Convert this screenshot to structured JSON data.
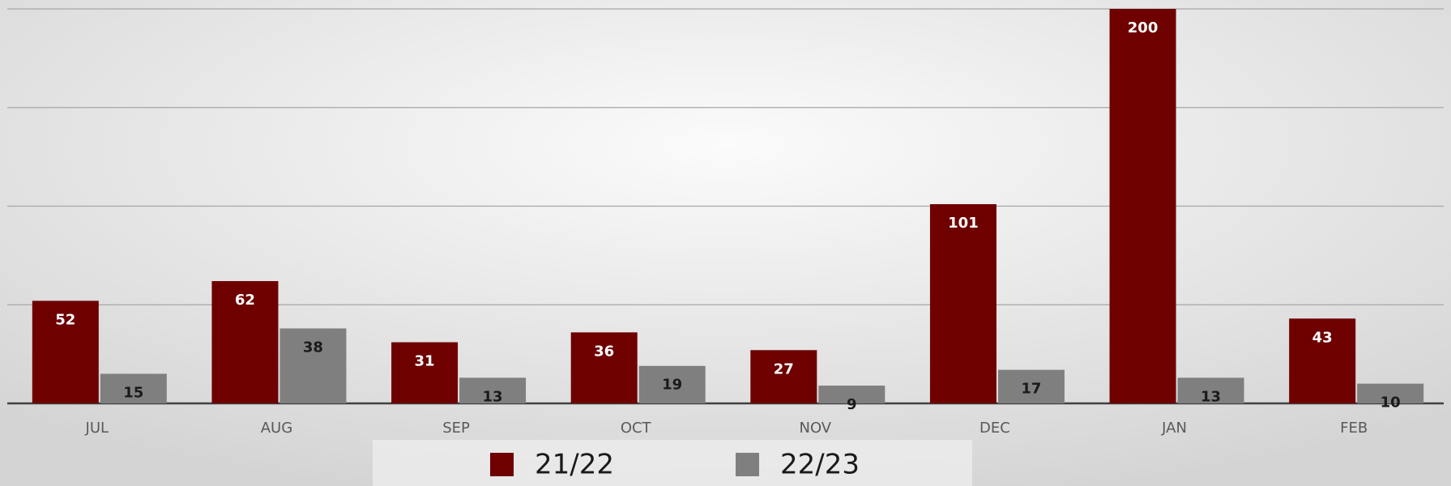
{
  "chart_data": {
    "type": "bar",
    "categories": [
      "JUL",
      "AUG",
      "SEP",
      "OCT",
      "NOV",
      "DEC",
      "JAN",
      "FEB"
    ],
    "series": [
      {
        "name": "21/22",
        "color": "#6e0000",
        "values": [
          52,
          62,
          31,
          36,
          27,
          101,
          200,
          43
        ]
      },
      {
        "name": "22/23",
        "color": "#7f7f7f",
        "values": [
          15,
          38,
          13,
          19,
          9,
          17,
          13,
          10
        ]
      }
    ],
    "ylim": [
      0,
      200
    ],
    "yticks": [
      0,
      50,
      100,
      150,
      200
    ],
    "grid": true,
    "legend": "bottom"
  }
}
